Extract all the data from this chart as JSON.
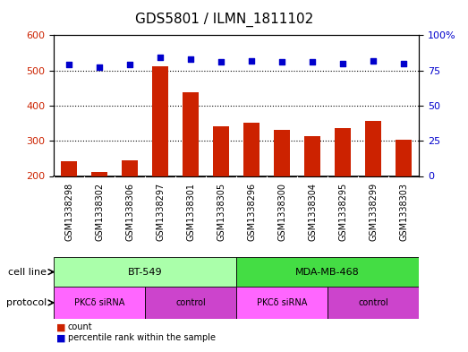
{
  "title": "GDS5801 / ILMN_1811102",
  "samples": [
    "GSM1338298",
    "GSM1338302",
    "GSM1338306",
    "GSM1338297",
    "GSM1338301",
    "GSM1338305",
    "GSM1338296",
    "GSM1338300",
    "GSM1338304",
    "GSM1338295",
    "GSM1338299",
    "GSM1338303"
  ],
  "counts": [
    243,
    211,
    244,
    511,
    437,
    342,
    352,
    332,
    314,
    337,
    356,
    303
  ],
  "percentiles": [
    79,
    77,
    79,
    84,
    83,
    81,
    82,
    81,
    81,
    80,
    82,
    80
  ],
  "ymin": 200,
  "ymax": 600,
  "yticks": [
    200,
    300,
    400,
    500,
    600
  ],
  "y2min": 0,
  "y2max": 100,
  "y2ticks": [
    0,
    25,
    50,
    75,
    100
  ],
  "bar_color": "#cc2200",
  "dot_color": "#0000cc",
  "cell_line_bt549_color": "#aaffaa",
  "cell_line_mda_color": "#44dd44",
  "protocol_pkc_color": "#ff66ff",
  "protocol_ctrl_color": "#cc44cc",
  "sample_bg_color": "#cccccc",
  "cell_lines": [
    {
      "label": "BT-549",
      "start": 0,
      "end": 6
    },
    {
      "label": "MDA-MB-468",
      "start": 6,
      "end": 12
    }
  ],
  "protocols": [
    {
      "label": "PKCδ siRNA",
      "start": 0,
      "end": 3
    },
    {
      "label": "control",
      "start": 3,
      "end": 6
    },
    {
      "label": "PKCδ siRNA",
      "start": 6,
      "end": 9
    },
    {
      "label": "control",
      "start": 9,
      "end": 12
    }
  ],
  "cell_line_label": "cell line",
  "protocol_label": "protocol",
  "legend_count": "count",
  "legend_percentile": "percentile rank within the sample",
  "title_fontsize": 11,
  "tick_fontsize": 8,
  "label_fontsize": 9,
  "annot_fontsize": 8
}
